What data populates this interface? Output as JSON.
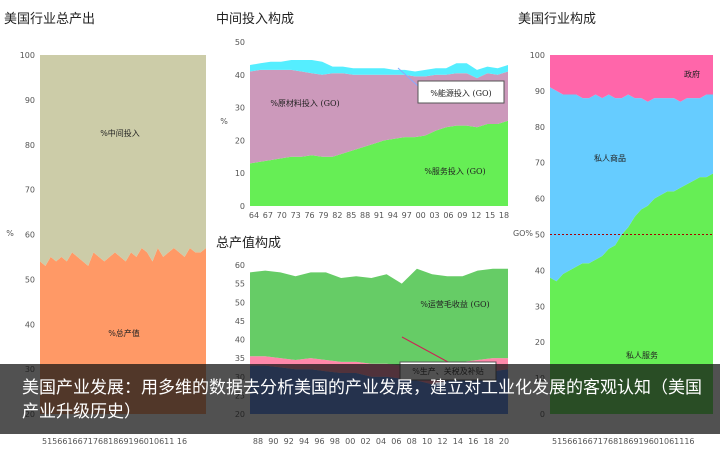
{
  "caption": "美国产业发展：用多维的数据去分析美国的产业发展，建立对工业化发展的客观认知（美国产业升级历史）",
  "chart_data": [
    {
      "id": "output",
      "type": "area",
      "title": "美国行业总产出",
      "ylabel": "%",
      "ylim": [
        20,
        100
      ],
      "yticks": [
        20,
        30,
        40,
        50,
        60,
        70,
        80,
        90,
        100
      ],
      "xtick_text": "51566166717681869196010611 16",
      "series": [
        {
          "name": "%总产值",
          "color": "#ff9966",
          "values": [
            54,
            53,
            55,
            54,
            55,
            54,
            56,
            55,
            54,
            53,
            56,
            55,
            54,
            55,
            56,
            55,
            54,
            56,
            55,
            57,
            56,
            54,
            57,
            55,
            56,
            57,
            56,
            55,
            57,
            56,
            56,
            57
          ]
        },
        {
          "name": "%中间投入",
          "color": "#cccca8",
          "values": [
            46,
            47,
            45,
            46,
            45,
            46,
            44,
            45,
            46,
            47,
            44,
            45,
            46,
            45,
            44,
            45,
            46,
            44,
            45,
            43,
            44,
            46,
            43,
            45,
            44,
            43,
            44,
            45,
            43,
            44,
            44,
            43
          ]
        }
      ]
    },
    {
      "id": "intermediate",
      "type": "area",
      "title": "中间投入构成",
      "ylabel": "%",
      "ylim": [
        0,
        50
      ],
      "yticks": [
        0,
        10,
        20,
        30,
        40,
        50
      ],
      "xticks": [
        "64",
        "67",
        "70",
        "73",
        "76",
        "79",
        "82",
        "85",
        "88",
        "91",
        "94",
        "97",
        "00",
        "03",
        "06",
        "09",
        "12",
        "15",
        "18"
      ],
      "series": [
        {
          "name": "%服务投入 (GO)",
          "color": "#66ee55",
          "values": [
            13,
            13.5,
            14,
            14.5,
            15,
            15,
            15.5,
            15,
            15,
            16,
            17,
            18,
            19,
            20,
            20.5,
            21,
            21,
            21.5,
            23,
            24,
            24.5,
            24.5,
            24,
            25,
            25,
            26
          ]
        },
        {
          "name": "%原材料投入 (GO)",
          "color": "#cc99bb",
          "values": [
            28,
            28,
            27.5,
            27,
            26.5,
            26,
            25,
            25,
            25.5,
            24.5,
            23,
            22,
            21,
            20,
            19.5,
            19,
            18.5,
            18,
            17,
            16,
            16,
            16,
            15,
            15.5,
            15,
            15
          ]
        },
        {
          "name": "%能源投入 (GO)",
          "color": "#55eeff",
          "values": [
            2,
            2,
            2.5,
            2.5,
            3,
            3.5,
            4,
            4,
            2,
            2,
            2,
            2,
            2,
            2,
            1.5,
            1.5,
            1.5,
            2,
            2,
            2,
            3,
            3,
            2.5,
            2,
            2,
            2
          ]
        }
      ],
      "annotation": "%能源投入 (GO)"
    },
    {
      "id": "value_added",
      "type": "area",
      "title": "总产值构成",
      "ylim": [
        20,
        60
      ],
      "yticks": [
        20,
        25,
        30,
        35,
        40,
        45,
        50,
        55,
        60
      ],
      "xticks": [
        "88",
        "90",
        "92",
        "94",
        "96",
        "98",
        "00",
        "02",
        "04",
        "06",
        "08",
        "10",
        "12",
        "14",
        "16",
        "18",
        "20"
      ],
      "series": [
        {
          "name": "%生产、关税及补贴",
          "color": "#5588ee",
          "values": [
            33,
            33,
            32.5,
            32,
            32,
            31.5,
            31,
            31,
            30,
            30,
            29.5,
            29,
            28,
            29,
            30,
            31,
            31.5,
            32
          ]
        },
        {
          "name": "pink band",
          "color": "#ff88aa",
          "values": [
            2.5,
            2.5,
            2.5,
            2.5,
            3,
            3,
            3,
            3,
            3.5,
            3.5,
            3.5,
            4,
            4.5,
            4,
            4,
            3.5,
            3.5,
            3
          ]
        },
        {
          "name": "%运营毛收益 (GO)",
          "color": "#66cc66",
          "values": [
            22.5,
            23,
            23,
            22.5,
            23,
            23.5,
            22.5,
            23,
            23,
            24,
            22,
            26,
            25,
            24,
            23,
            24,
            24,
            24
          ]
        }
      ],
      "annotations": [
        "%运营毛收益 (GO)",
        "%生产、关税及补贴"
      ]
    },
    {
      "id": "industry",
      "type": "area",
      "title": "美国行业构成",
      "ylabel": "GO%",
      "ylim": [
        0,
        100
      ],
      "yticks": [
        0,
        10,
        20,
        30,
        40,
        50,
        60,
        70,
        80,
        90,
        100
      ],
      "xtick_text": "5156616671768186919601061116",
      "reference_line": 50,
      "series": [
        {
          "name": "私人服务",
          "color": "#66ee55",
          "values": [
            38,
            37,
            39,
            40,
            41,
            42,
            42,
            43,
            44,
            46,
            47,
            50,
            52,
            55,
            57,
            58,
            60,
            61,
            62,
            62,
            63,
            64,
            65,
            66,
            66,
            67
          ]
        },
        {
          "name": "私人商品",
          "color": "#66ccff",
          "values": [
            53,
            53,
            50,
            49,
            48,
            46,
            46,
            46,
            44,
            43,
            41,
            38,
            37,
            33,
            31,
            29,
            28,
            27,
            26,
            26,
            24,
            24,
            23,
            22,
            23,
            22
          ]
        },
        {
          "name": "政府",
          "color": "#ff66aa",
          "values": [
            9,
            10,
            11,
            11,
            11,
            12,
            12,
            11,
            12,
            11,
            12,
            12,
            11,
            12,
            12,
            13,
            12,
            12,
            12,
            12,
            13,
            12,
            12,
            12,
            11,
            11
          ]
        }
      ]
    }
  ]
}
